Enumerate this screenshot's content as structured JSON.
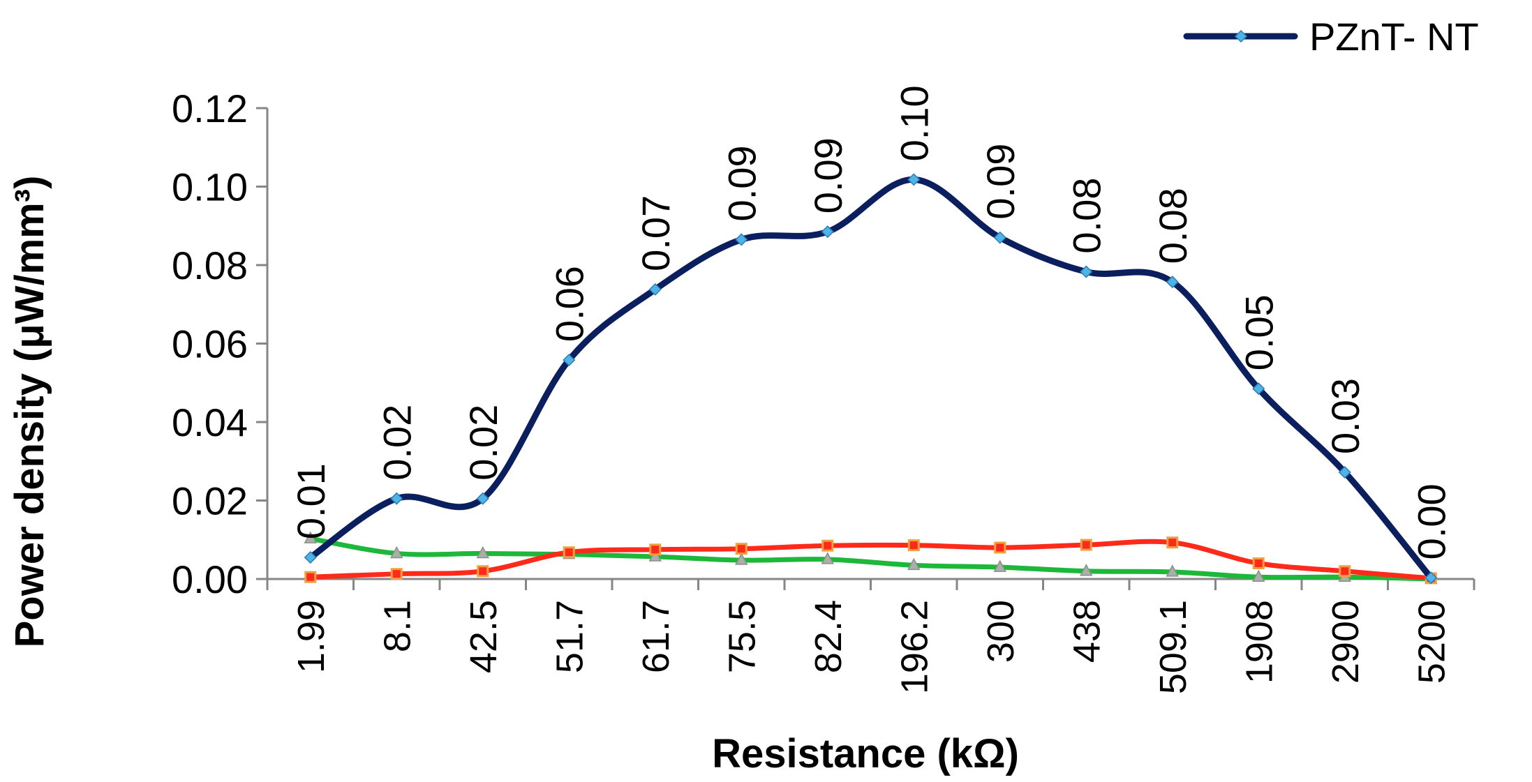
{
  "chart_data": {
    "type": "line",
    "title": "",
    "xlabel": "Resistance (kΩ)",
    "ylabel": "Power density (μW/mm³)",
    "ylim": [
      0,
      0.12
    ],
    "yticks": [
      "0.00",
      "0.02",
      "0.04",
      "0.06",
      "0.08",
      "0.10",
      "0.12"
    ],
    "categories": [
      "1.99",
      "8.1",
      "42.5",
      "51.7",
      "61.7",
      "75.5",
      "82.4",
      "196.2",
      "300",
      "438",
      "509.1",
      "1908",
      "2900",
      "5200"
    ],
    "grid": false,
    "legend_position": "top-right",
    "series": [
      {
        "name": "PZnT- NT",
        "color": "#0b1f5e",
        "marker_color": "#4fb3e6",
        "marker": "diamond",
        "values": [
          0.0055,
          0.0205,
          0.0205,
          0.0558,
          0.0738,
          0.0865,
          0.0885,
          0.1018,
          0.087,
          0.0783,
          0.0757,
          0.0485,
          0.0272,
          0.0003
        ],
        "data_labels": [
          "0.01",
          "0.02",
          "0.02",
          "0.06",
          "0.07",
          "0.09",
          "0.09",
          "0.10",
          "0.09",
          "0.08",
          "0.08",
          "0.05",
          "0.03",
          "0.00"
        ]
      },
      {
        "color": "#ff2a1a",
        "marker_color": "#f0a040",
        "marker": "square",
        "values": [
          0.0005,
          0.0013,
          0.002,
          0.0068,
          0.0075,
          0.0077,
          0.0085,
          0.0086,
          0.008,
          0.0087,
          0.0093,
          0.004,
          0.002,
          0.0002
        ]
      },
      {
        "color": "#1db83a",
        "marker_color": "#a8b0a8",
        "marker": "triangle",
        "values": [
          0.0103,
          0.0065,
          0.0065,
          0.0063,
          0.0057,
          0.0048,
          0.005,
          0.0035,
          0.003,
          0.002,
          0.0018,
          0.0005,
          0.0005,
          0.0
        ]
      }
    ]
  }
}
